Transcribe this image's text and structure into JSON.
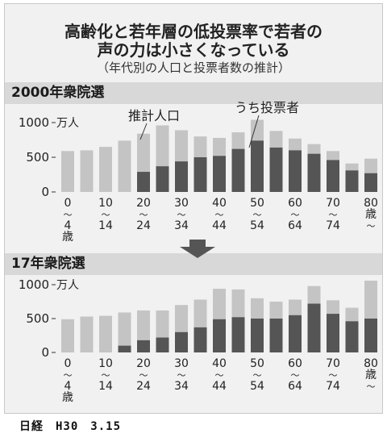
{
  "title_line1": "高齢化と若年層の低投票率で若者の",
  "title_line2": "声の力は小さくなっている",
  "subtitle": "（年代別の人口と投票者数の推計）",
  "source": "日経　H30　3.15",
  "chart_data": [
    {
      "type": "bar",
      "title": "2000年衆院選",
      "ylabel": "万人",
      "ylim": [
        0,
        1000
      ],
      "yticks": [
        0,
        500,
        1000
      ],
      "bar_groups": [
        "0-4",
        "5-9",
        "10-14",
        "15-19",
        "20-24",
        "25-29",
        "30-34",
        "35-39",
        "40-44",
        "45-49",
        "50-54",
        "55-59",
        "60-64",
        "65-69",
        "70-74",
        "75-79",
        "80-"
      ],
      "axis_labels": [
        {
          "group": 0,
          "lines": [
            "0",
            "〜",
            "4",
            "歳"
          ]
        },
        {
          "group": 2,
          "lines": [
            "10",
            "〜",
            "14"
          ]
        },
        {
          "group": 4,
          "lines": [
            "20",
            "〜",
            "24"
          ]
        },
        {
          "group": 6,
          "lines": [
            "30",
            "〜",
            "34"
          ]
        },
        {
          "group": 8,
          "lines": [
            "40",
            "〜",
            "44"
          ]
        },
        {
          "group": 10,
          "lines": [
            "50",
            "〜",
            "54"
          ]
        },
        {
          "group": 12,
          "lines": [
            "60",
            "〜",
            "64"
          ]
        },
        {
          "group": 14,
          "lines": [
            "70",
            "〜",
            "74"
          ]
        },
        {
          "group": 16,
          "lines": [
            "80",
            "歳",
            "〜"
          ]
        }
      ],
      "series": [
        {
          "name": "推計人口",
          "color": "#c4c4c4",
          "values": [
            590,
            600,
            650,
            740,
            840,
            960,
            890,
            800,
            780,
            860,
            1040,
            880,
            770,
            690,
            590,
            410,
            480
          ]
        },
        {
          "name": "うち投票者",
          "color": "#555555",
          "values": [
            0,
            0,
            0,
            0,
            290,
            370,
            440,
            500,
            520,
            620,
            740,
            640,
            600,
            550,
            460,
            310,
            270
          ]
        }
      ]
    },
    {
      "type": "bar",
      "title": "17年衆院選",
      "ylabel": "万人",
      "ylim": [
        0,
        1000
      ],
      "yticks": [
        0,
        500,
        1000
      ],
      "bar_groups": [
        "0-4",
        "5-9",
        "10-14",
        "15-19",
        "20-24",
        "25-29",
        "30-34",
        "35-39",
        "40-44",
        "45-49",
        "50-54",
        "55-59",
        "60-64",
        "65-69",
        "70-74",
        "75-79",
        "80-"
      ],
      "axis_labels": [
        {
          "group": 0,
          "lines": [
            "0",
            "〜",
            "4",
            "歳"
          ]
        },
        {
          "group": 2,
          "lines": [
            "10",
            "〜",
            "14"
          ]
        },
        {
          "group": 4,
          "lines": [
            "20",
            "〜",
            "24"
          ]
        },
        {
          "group": 6,
          "lines": [
            "30",
            "〜",
            "34"
          ]
        },
        {
          "group": 8,
          "lines": [
            "40",
            "〜",
            "44"
          ]
        },
        {
          "group": 10,
          "lines": [
            "50",
            "〜",
            "54"
          ]
        },
        {
          "group": 12,
          "lines": [
            "60",
            "〜",
            "64"
          ]
        },
        {
          "group": 14,
          "lines": [
            "70",
            "〜",
            "74"
          ]
        },
        {
          "group": 16,
          "lines": [
            "80",
            "歳",
            "〜"
          ]
        }
      ],
      "series": [
        {
          "name": "推計人口",
          "color": "#c4c4c4",
          "values": [
            490,
            530,
            540,
            590,
            620,
            620,
            700,
            780,
            940,
            930,
            800,
            750,
            780,
            980,
            770,
            660,
            1060
          ]
        },
        {
          "name": "うち投票者",
          "color": "#555555",
          "values": [
            0,
            0,
            0,
            100,
            180,
            220,
            300,
            370,
            490,
            520,
            500,
            500,
            550,
            720,
            570,
            460,
            500
          ]
        }
      ]
    }
  ]
}
